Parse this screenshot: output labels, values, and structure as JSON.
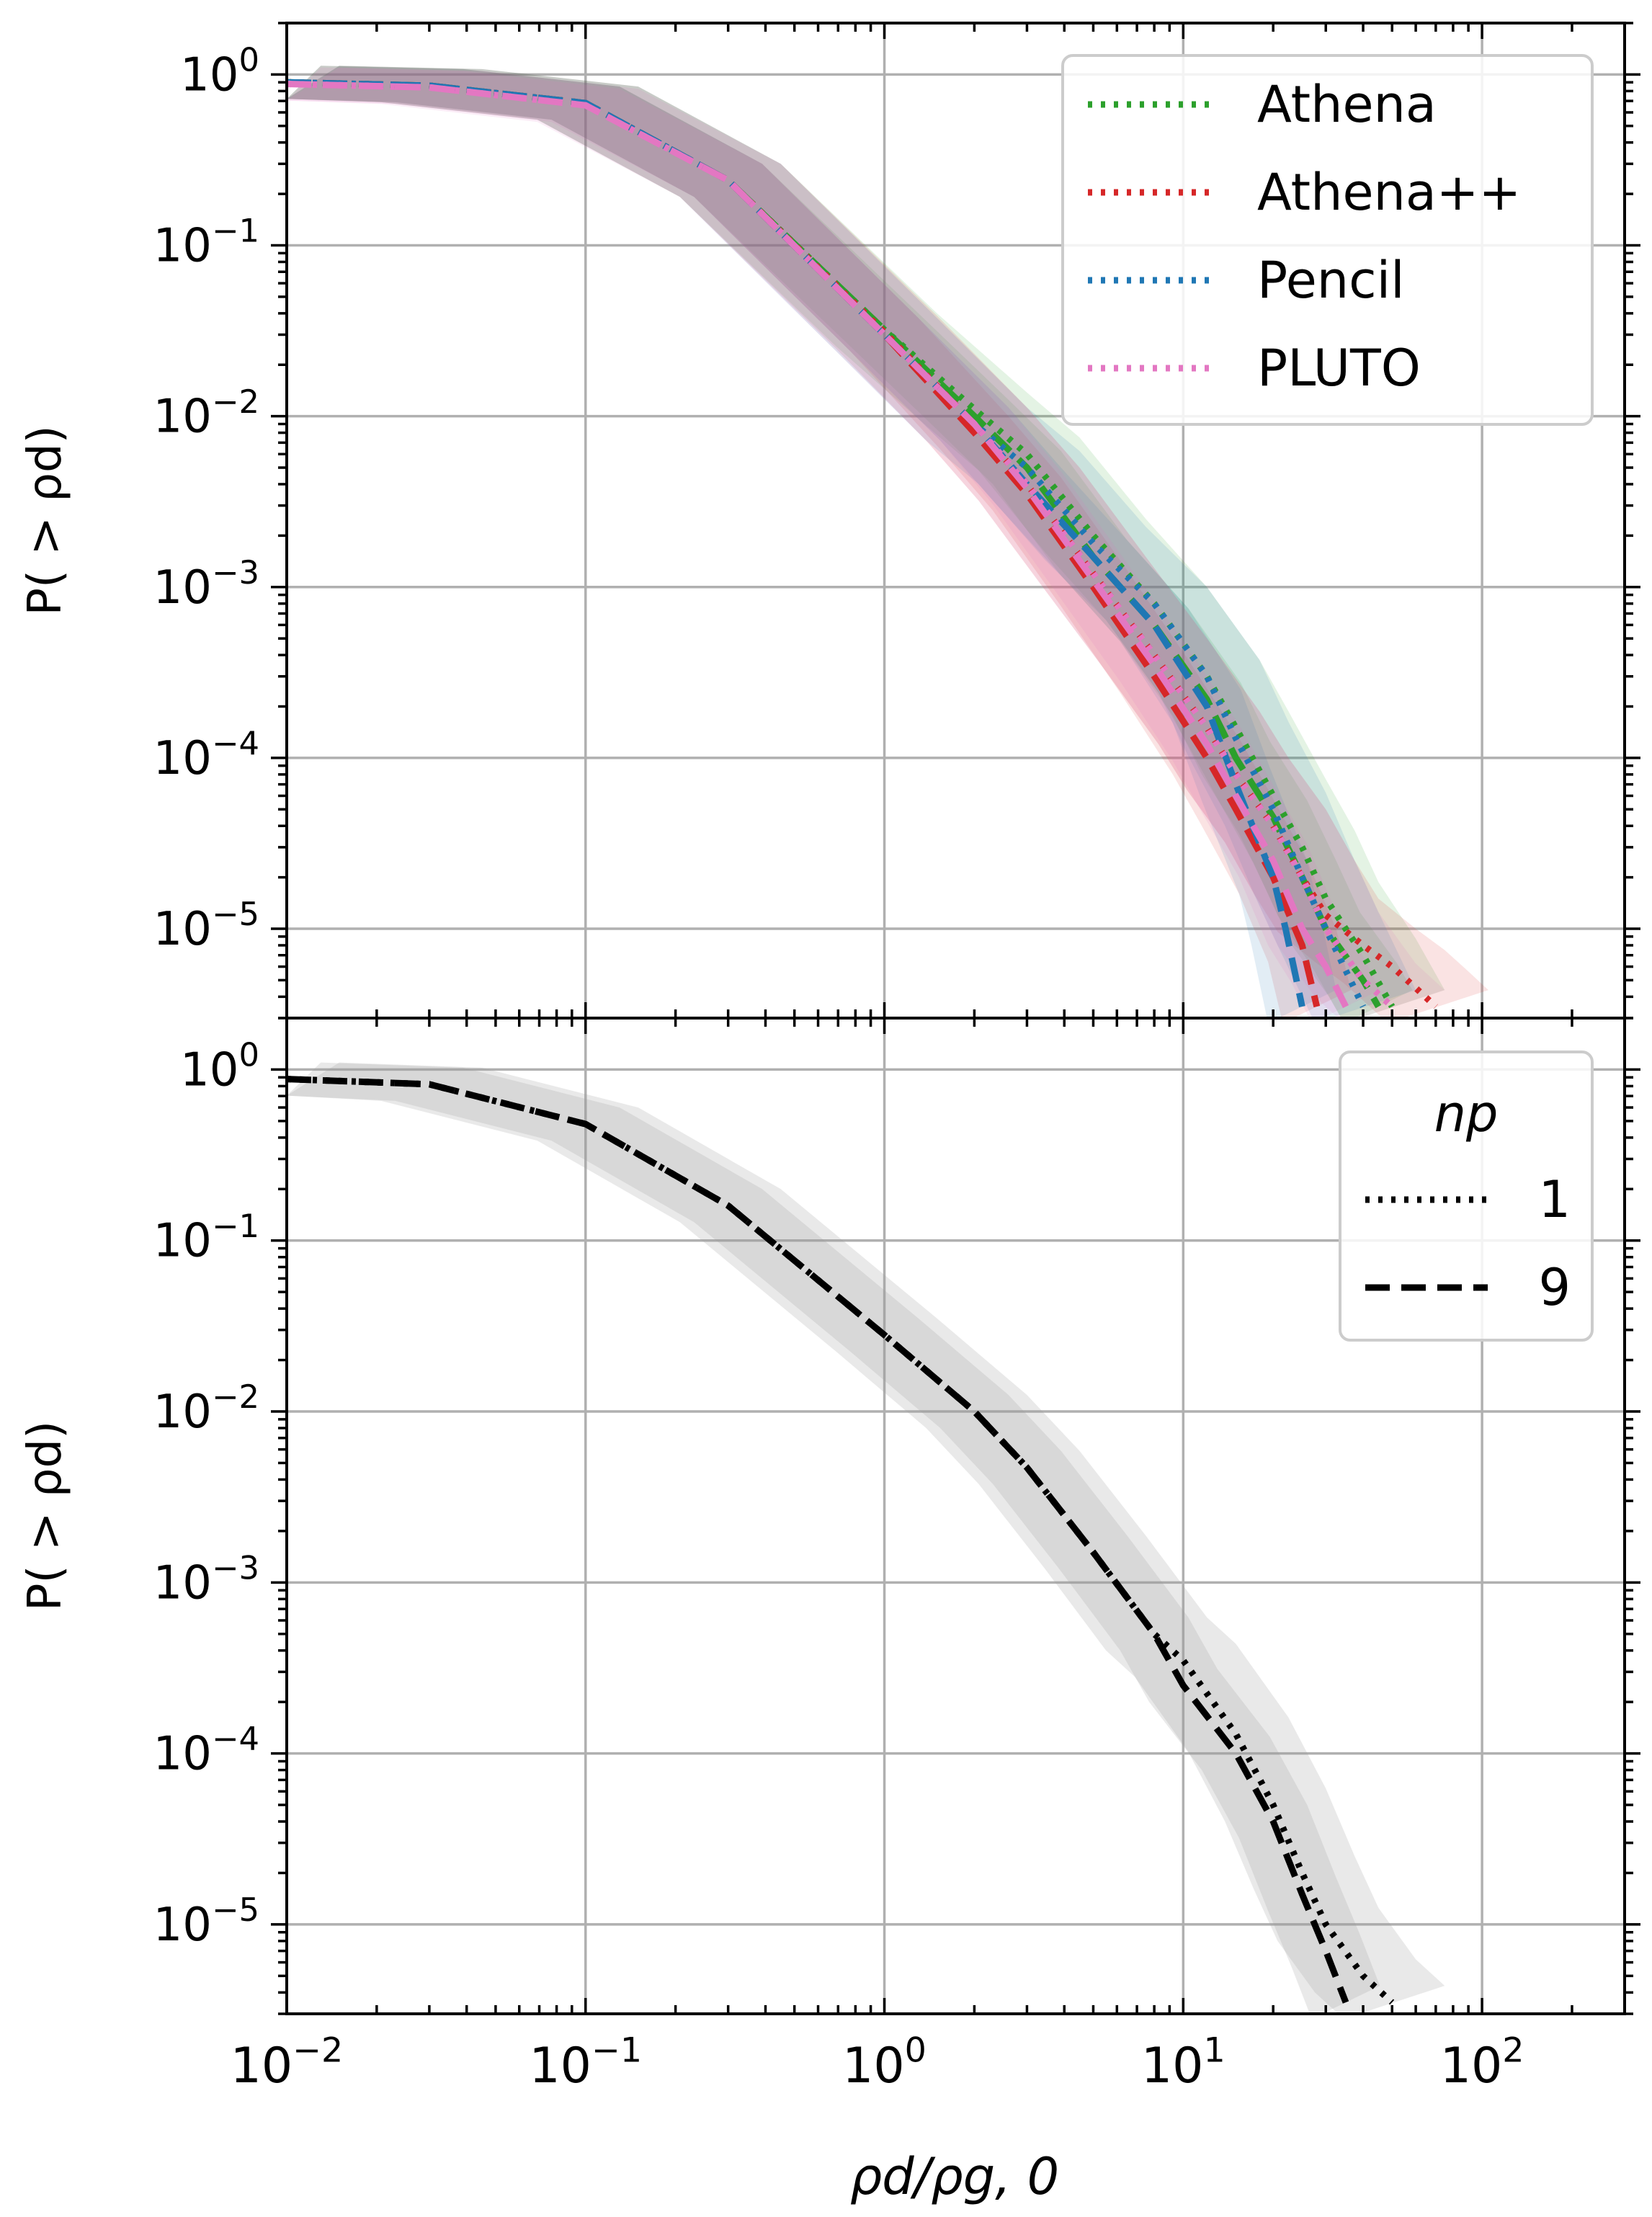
{
  "figure": {
    "xlabel": "ρd/ρg, 0",
    "shared_x_ticks": [
      "10−2",
      "10−1",
      "100",
      "101",
      "102"
    ]
  },
  "chart_data": [
    {
      "type": "line",
      "panel": "top",
      "xlabel": "",
      "ylabel": "P( > ρd)",
      "xscale": "log",
      "yscale": "log",
      "xlim": [
        0.01,
        300
      ],
      "ylim": [
        3e-06,
        2
      ],
      "grid": true,
      "legend_placement": "top-right",
      "y_ticks": [
        "100",
        "10−1",
        "10−2",
        "10−3",
        "10−4",
        "10−5"
      ],
      "series": [
        {
          "name": "Athena",
          "color": "#2ca02c",
          "style": "dotted",
          "x": [
            0.01,
            0.03,
            0.1,
            0.3,
            1,
            2,
            3,
            5,
            8,
            12,
            15,
            20,
            25,
            30,
            40,
            50
          ],
          "y": [
            0.9,
            0.86,
            0.68,
            0.24,
            0.032,
            0.011,
            0.006,
            0.002,
            0.0008,
            0.0003,
            0.00015,
            6e-05,
            3e-05,
            1.5e-05,
            7e-06,
            3.5e-06
          ]
        },
        {
          "name": "Athena",
          "color": "#2ca02c",
          "style": "dashed",
          "x": [
            0.01,
            0.03,
            0.1,
            0.3,
            1,
            2,
            3,
            5,
            8,
            12,
            15,
            20,
            25,
            30,
            40,
            45
          ],
          "y": [
            0.9,
            0.86,
            0.68,
            0.24,
            0.032,
            0.01,
            0.005,
            0.0015,
            0.0006,
            0.00022,
            0.0001,
            4.5e-05,
            2e-05,
            1e-05,
            5e-06,
            3.5e-06
          ]
        },
        {
          "name": "Athena++",
          "color": "#d62728",
          "style": "dotted",
          "x": [
            0.01,
            0.03,
            0.1,
            0.3,
            1,
            2,
            3,
            5,
            8,
            12,
            15,
            20,
            25,
            30,
            40,
            50,
            60,
            70
          ],
          "y": [
            0.9,
            0.86,
            0.68,
            0.24,
            0.031,
            0.009,
            0.004,
            0.0012,
            0.0004,
            0.00015,
            8e-05,
            4e-05,
            2e-05,
            1.2e-05,
            8e-06,
            6e-06,
            4.5e-06,
            3.5e-06
          ]
        },
        {
          "name": "Athena++",
          "color": "#d62728",
          "style": "dashed",
          "x": [
            0.01,
            0.03,
            0.1,
            0.3,
            1,
            2,
            3,
            5,
            8,
            12,
            15,
            20,
            25,
            28
          ],
          "y": [
            0.9,
            0.86,
            0.68,
            0.24,
            0.03,
            0.008,
            0.0035,
            0.001,
            0.0003,
            0.0001,
            5e-05,
            2e-05,
            8e-06,
            3.5e-06
          ]
        },
        {
          "name": "Pencil",
          "color": "#1f77b4",
          "style": "dotted",
          "x": [
            0.01,
            0.03,
            0.1,
            0.3,
            1,
            2,
            3,
            5,
            8,
            12,
            15,
            20,
            25,
            30,
            40
          ],
          "y": [
            0.9,
            0.86,
            0.68,
            0.24,
            0.03,
            0.009,
            0.005,
            0.0018,
            0.0008,
            0.0003,
            0.00013,
            5e-05,
            2e-05,
            1e-05,
            3.5e-06
          ]
        },
        {
          "name": "Pencil",
          "color": "#1f77b4",
          "style": "dashed",
          "x": [
            0.01,
            0.03,
            0.1,
            0.3,
            1,
            2,
            3,
            5,
            8,
            12,
            15,
            20,
            22,
            25
          ],
          "y": [
            0.9,
            0.86,
            0.68,
            0.24,
            0.03,
            0.009,
            0.004,
            0.0015,
            0.0006,
            0.0002,
            7e-05,
            2e-05,
            1e-05,
            3.5e-06
          ]
        },
        {
          "name": "PLUTO",
          "color": "#e377c2",
          "style": "dotted",
          "x": [
            0.01,
            0.03,
            0.1,
            0.3,
            1,
            2,
            3,
            5,
            8,
            12,
            15,
            20,
            25,
            30,
            40,
            50
          ],
          "y": [
            0.88,
            0.84,
            0.66,
            0.24,
            0.03,
            0.009,
            0.004,
            0.0012,
            0.0004,
            0.00015,
            8e-05,
            4e-05,
            2e-05,
            1e-05,
            5e-06,
            3.5e-06
          ]
        },
        {
          "name": "PLUTO",
          "color": "#e377c2",
          "style": "dashed",
          "x": [
            0.01,
            0.03,
            0.1,
            0.3,
            1,
            2,
            3,
            5,
            8,
            12,
            15,
            20,
            25,
            30,
            35
          ],
          "y": [
            0.88,
            0.84,
            0.66,
            0.24,
            0.03,
            0.009,
            0.0038,
            0.0011,
            0.00035,
            0.00012,
            6e-05,
            2.5e-05,
            1e-05,
            6e-06,
            3.5e-06
          ]
        }
      ],
      "legend": {
        "entries": [
          {
            "label": "Athena",
            "color": "#2ca02c",
            "style": "dotted"
          },
          {
            "label": "Athena++",
            "color": "#d62728",
            "style": "dotted"
          },
          {
            "label": "Pencil",
            "color": "#1f77b4",
            "style": "dotted"
          },
          {
            "label": "PLUTO",
            "color": "#e377c2",
            "style": "dotted"
          }
        ]
      }
    },
    {
      "type": "line",
      "panel": "bottom",
      "xlabel": "ρd/ρg, 0",
      "ylabel": "P( > ρd)",
      "xscale": "log",
      "yscale": "log",
      "xlim": [
        0.01,
        300
      ],
      "ylim": [
        3e-06,
        2
      ],
      "grid": true,
      "legend_placement": "top-right",
      "y_ticks": [
        "100",
        "10−1",
        "10−2",
        "10−3",
        "10−4",
        "10−5"
      ],
      "legend": {
        "title": "np",
        "entries": [
          {
            "label": "1",
            "color": "#000000",
            "style": "dotted"
          },
          {
            "label": "9",
            "color": "#000000",
            "style": "dashed"
          }
        ]
      },
      "series": [
        {
          "name": "1",
          "color": "#000000",
          "style": "dotted",
          "x": [
            0.01,
            0.03,
            0.1,
            0.3,
            1,
            2,
            3,
            5,
            8,
            10,
            15,
            20,
            25,
            30,
            40,
            50
          ],
          "y": [
            0.88,
            0.82,
            0.48,
            0.16,
            0.028,
            0.01,
            0.0047,
            0.0015,
            0.0005,
            0.00035,
            0.00013,
            5e-05,
            2e-05,
            1e-05,
            5e-06,
            3.5e-06
          ]
        },
        {
          "name": "9",
          "color": "#000000",
          "style": "dashed",
          "x": [
            0.01,
            0.03,
            0.1,
            0.3,
            1,
            2,
            3,
            5,
            8,
            10,
            15,
            20,
            25,
            30,
            35
          ],
          "y": [
            0.88,
            0.82,
            0.48,
            0.16,
            0.028,
            0.01,
            0.0047,
            0.0015,
            0.0005,
            0.00025,
            0.0001,
            4e-05,
            1.5e-05,
            7e-06,
            3.5e-06
          ]
        }
      ]
    }
  ]
}
